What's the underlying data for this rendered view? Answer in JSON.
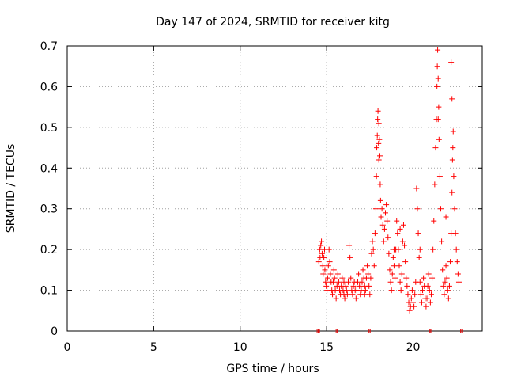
{
  "chart_data": {
    "type": "scatter",
    "title": "Day 147 of 2024, SRMTID for receiver kitg",
    "xlabel": "GPS time / hours",
    "ylabel": "SRMTID / TECUs",
    "xlim": [
      0,
      24
    ],
    "ylim": [
      0,
      0.7
    ],
    "xticks": [
      0,
      5,
      10,
      15,
      20
    ],
    "xtick_labels": [
      "0",
      "5",
      "10",
      "15",
      "20"
    ],
    "yticks": [
      0,
      0.1,
      0.2,
      0.3,
      0.4,
      0.5,
      0.6,
      0.7
    ],
    "ytick_labels": [
      "0",
      "0.1",
      "0.2",
      "0.3",
      "0.4",
      "0.5",
      "0.6",
      "0.7"
    ],
    "grid": true,
    "marker": "+",
    "color": "#ff0000",
    "series": [
      {
        "name": "SRMTID",
        "points": [
          [
            14.55,
            0.17
          ],
          [
            14.6,
            0.2
          ],
          [
            14.62,
            0.18
          ],
          [
            14.66,
            0.21
          ],
          [
            14.7,
            0.22
          ],
          [
            14.74,
            0.19
          ],
          [
            14.78,
            0.16
          ],
          [
            14.8,
            0.14
          ],
          [
            14.84,
            0.18
          ],
          [
            14.88,
            0.2
          ],
          [
            14.9,
            0.15
          ],
          [
            14.94,
            0.12
          ],
          [
            14.98,
            0.11
          ],
          [
            15.02,
            0.1
          ],
          [
            15.06,
            0.13
          ],
          [
            15.1,
            0.16
          ],
          [
            15.14,
            0.2
          ],
          [
            15.18,
            0.17
          ],
          [
            15.22,
            0.14
          ],
          [
            15.26,
            0.12
          ],
          [
            15.3,
            0.1
          ],
          [
            15.34,
            0.09
          ],
          [
            15.38,
            0.12
          ],
          [
            15.42,
            0.15
          ],
          [
            15.46,
            0.13
          ],
          [
            15.5,
            0.1
          ],
          [
            15.55,
            0.08
          ],
          [
            15.6,
            0.11
          ],
          [
            15.65,
            0.14
          ],
          [
            15.7,
            0.12
          ],
          [
            15.75,
            0.1
          ],
          [
            15.8,
            0.09
          ],
          [
            15.85,
            0.11
          ],
          [
            15.9,
            0.13
          ],
          [
            15.95,
            0.1
          ],
          [
            16.0,
            0.09
          ],
          [
            16.05,
            0.08
          ],
          [
            16.1,
            0.11
          ],
          [
            16.15,
            0.1
          ],
          [
            16.2,
            0.09
          ],
          [
            16.25,
            0.12
          ],
          [
            16.3,
            0.21
          ],
          [
            16.35,
            0.18
          ],
          [
            16.4,
            0.13
          ],
          [
            16.45,
            0.1
          ],
          [
            16.5,
            0.09
          ],
          [
            16.55,
            0.11
          ],
          [
            16.6,
            0.12
          ],
          [
            16.65,
            0.1
          ],
          [
            16.7,
            0.08
          ],
          [
            16.75,
            0.1
          ],
          [
            16.8,
            0.12
          ],
          [
            16.85,
            0.14
          ],
          [
            16.9,
            0.11
          ],
          [
            16.95,
            0.09
          ],
          [
            17.0,
            0.1
          ],
          [
            17.05,
            0.12
          ],
          [
            17.1,
            0.15
          ],
          [
            17.15,
            0.13
          ],
          [
            17.2,
            0.11
          ],
          [
            17.25,
            0.1
          ],
          [
            17.3,
            0.13
          ],
          [
            17.35,
            0.16
          ],
          [
            17.4,
            0.14
          ],
          [
            17.45,
            0.11
          ],
          [
            17.5,
            0.09
          ],
          [
            17.55,
            0.13
          ],
          [
            17.6,
            0.19
          ],
          [
            17.65,
            0.22
          ],
          [
            17.7,
            0.2
          ],
          [
            17.75,
            0.16
          ],
          [
            17.8,
            0.24
          ],
          [
            17.85,
            0.3
          ],
          [
            17.88,
            0.38
          ],
          [
            17.9,
            0.45
          ],
          [
            17.93,
            0.48
          ],
          [
            17.95,
            0.52
          ],
          [
            17.97,
            0.54
          ],
          [
            18.0,
            0.46
          ],
          [
            18.02,
            0.42
          ],
          [
            18.05,
            0.47
          ],
          [
            18.08,
            0.43
          ],
          [
            18.1,
            0.36
          ],
          [
            18.12,
            0.32
          ],
          [
            18.15,
            0.28
          ],
          [
            18.2,
            0.3
          ],
          [
            18.25,
            0.26
          ],
          [
            18.3,
            0.22
          ],
          [
            18.35,
            0.25
          ],
          [
            18.4,
            0.29
          ],
          [
            18.45,
            0.31
          ],
          [
            18.5,
            0.27
          ],
          [
            18.55,
            0.23
          ],
          [
            18.6,
            0.19
          ],
          [
            18.65,
            0.15
          ],
          [
            18.7,
            0.12
          ],
          [
            18.75,
            0.1
          ],
          [
            18.8,
            0.14
          ],
          [
            18.85,
            0.18
          ],
          [
            18.9,
            0.16
          ],
          [
            18.95,
            0.13
          ],
          [
            19.0,
            0.2
          ],
          [
            19.05,
            0.27
          ],
          [
            19.1,
            0.24
          ],
          [
            19.15,
            0.2
          ],
          [
            19.2,
            0.16
          ],
          [
            19.25,
            0.12
          ],
          [
            19.3,
            0.1
          ],
          [
            19.35,
            0.14
          ],
          [
            19.4,
            0.22
          ],
          [
            19.45,
            0.26
          ],
          [
            19.5,
            0.21
          ],
          [
            19.55,
            0.17
          ],
          [
            19.6,
            0.13
          ],
          [
            19.65,
            0.11
          ],
          [
            19.7,
            0.09
          ],
          [
            19.75,
            0.07
          ],
          [
            19.8,
            0.05
          ],
          [
            19.85,
            0.06
          ],
          [
            19.9,
            0.08
          ],
          [
            19.95,
            0.1
          ],
          [
            20.0,
            0.07
          ],
          [
            20.05,
            0.06
          ],
          [
            20.1,
            0.09
          ],
          [
            20.15,
            0.12
          ],
          [
            20.2,
            0.35
          ],
          [
            20.25,
            0.3
          ],
          [
            20.3,
            0.24
          ],
          [
            20.35,
            0.18
          ],
          [
            20.4,
            0.12
          ],
          [
            20.45,
            0.09
          ],
          [
            20.5,
            0.07
          ],
          [
            20.55,
            0.1
          ],
          [
            20.6,
            0.13
          ],
          [
            20.65,
            0.11
          ],
          [
            20.7,
            0.08
          ],
          [
            20.75,
            0.06
          ],
          [
            20.8,
            0.08
          ],
          [
            20.85,
            0.11
          ],
          [
            20.9,
            0.14
          ],
          [
            20.95,
            0.1
          ],
          [
            21.0,
            0.07
          ],
          [
            21.05,
            0.09
          ],
          [
            21.1,
            0.13
          ],
          [
            21.15,
            0.2
          ],
          [
            21.2,
            0.27
          ],
          [
            21.25,
            0.36
          ],
          [
            21.3,
            0.45
          ],
          [
            21.35,
            0.52
          ],
          [
            21.38,
            0.6
          ],
          [
            21.4,
            0.65
          ],
          [
            21.42,
            0.69
          ],
          [
            21.45,
            0.62
          ],
          [
            21.48,
            0.55
          ],
          [
            21.5,
            0.47
          ],
          [
            21.55,
            0.38
          ],
          [
            21.6,
            0.3
          ],
          [
            21.65,
            0.22
          ],
          [
            21.7,
            0.15
          ],
          [
            21.75,
            0.11
          ],
          [
            21.8,
            0.09
          ],
          [
            21.85,
            0.12
          ],
          [
            21.9,
            0.16
          ],
          [
            21.95,
            0.13
          ],
          [
            22.0,
            0.1
          ],
          [
            22.05,
            0.08
          ],
          [
            22.1,
            0.11
          ],
          [
            22.15,
            0.17
          ],
          [
            22.2,
            0.24
          ],
          [
            22.25,
            0.34
          ],
          [
            22.28,
            0.42
          ],
          [
            22.3,
            0.45
          ],
          [
            22.32,
            0.49
          ],
          [
            22.35,
            0.38
          ],
          [
            22.4,
            0.3
          ],
          [
            22.45,
            0.24
          ],
          [
            22.5,
            0.2
          ],
          [
            22.55,
            0.17
          ],
          [
            22.6,
            0.14
          ],
          [
            22.65,
            0.12
          ],
          [
            22.2,
            0.66
          ],
          [
            22.25,
            0.57
          ],
          [
            18.02,
            0.51
          ],
          [
            21.45,
            0.52
          ],
          [
            18.9,
            0.2
          ],
          [
            19.25,
            0.25
          ],
          [
            20.4,
            0.2
          ],
          [
            21.9,
            0.28
          ],
          [
            17.2,
            0.09
          ],
          [
            16.0,
            0.12
          ]
        ]
      }
    ],
    "rug_ranges": [
      [
        14.45,
        14.6
      ],
      [
        15.55,
        15.65
      ],
      [
        17.45,
        17.52
      ],
      [
        20.95,
        21.15
      ],
      [
        22.75,
        22.82
      ]
    ]
  }
}
